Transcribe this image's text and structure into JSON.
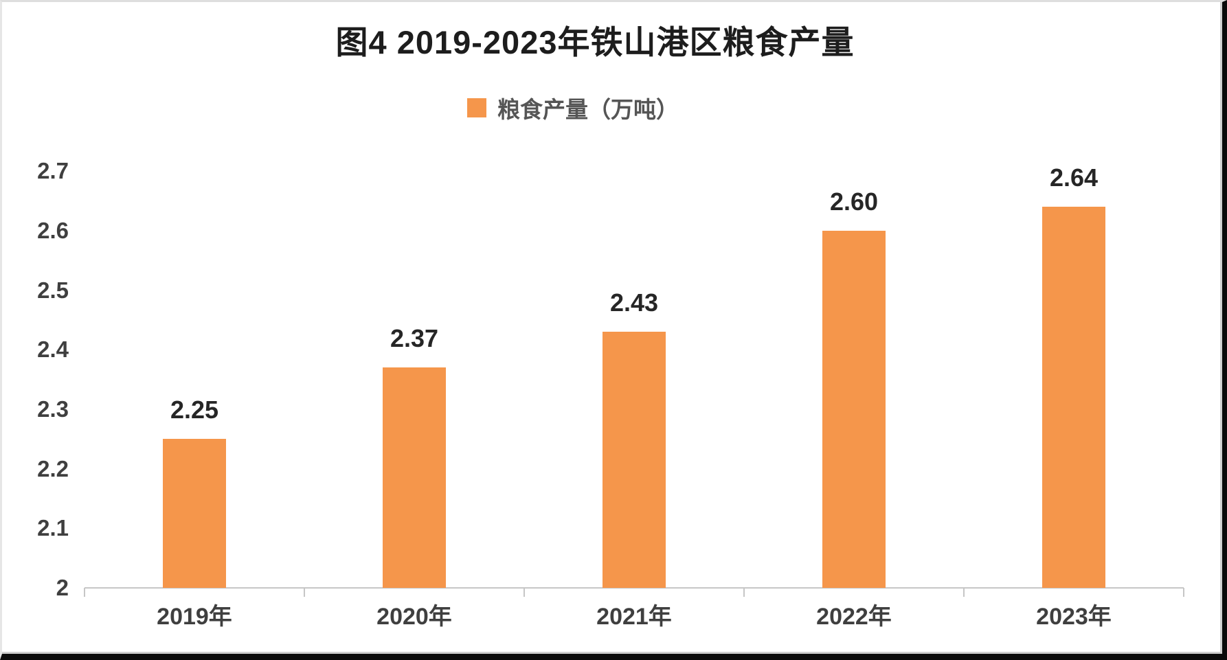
{
  "chart_data": {
    "type": "bar",
    "title": "图4 2019-2023年铁山港区粮食产量",
    "legend": {
      "label": "粮食产量（万吨）",
      "position": "top"
    },
    "categories": [
      "2019年",
      "2020年",
      "2021年",
      "2022年",
      "2023年"
    ],
    "series": [
      {
        "name": "粮食产量（万吨）",
        "values": [
          2.25,
          2.37,
          2.43,
          2.6,
          2.64
        ]
      }
    ],
    "value_labels": [
      "2.25",
      "2.37",
      "2.43",
      "2.60",
      "2.64"
    ],
    "xlabel": "",
    "ylabel": "",
    "ylim": [
      2,
      2.7
    ],
    "ytick_labels": [
      "2.7",
      "2.6",
      "2.5",
      "2.4",
      "2.3",
      "2.2",
      "2.1",
      "2"
    ],
    "grid": false,
    "colors": {
      "bar": "#F5964B",
      "title_text": "#1D1D1D",
      "legend_text": "#555555",
      "tick_text": "#3F3F3F",
      "value_label_text": "#262626",
      "axis_line": "#C6C6C6"
    }
  }
}
